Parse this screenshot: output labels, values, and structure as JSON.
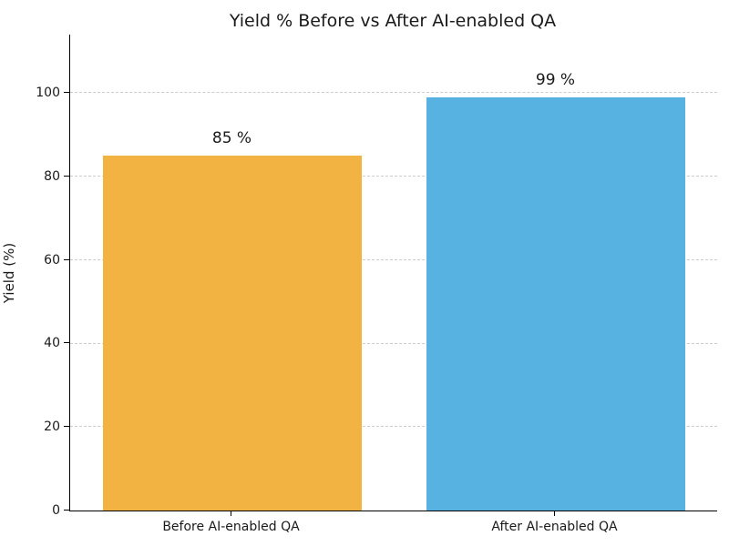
{
  "chart_data": {
    "type": "bar",
    "title": "Yield % Before vs After AI-enabled QA",
    "categories": [
      "Before AI-enabled QA",
      "After AI-enabled QA"
    ],
    "values": [
      85,
      99
    ],
    "bar_labels": [
      "85 %",
      "99 %"
    ],
    "bar_colors": [
      "#F2B342",
      "#57B2E2"
    ],
    "xlabel": "",
    "ylabel": "Yield (%)",
    "ylim": [
      0,
      114
    ],
    "yticks": [
      0,
      20,
      40,
      60,
      80,
      100
    ],
    "grid": "horizontal-dashed",
    "grid_color": "#cccccc",
    "legend": "none",
    "background_color": "#ffffff"
  }
}
